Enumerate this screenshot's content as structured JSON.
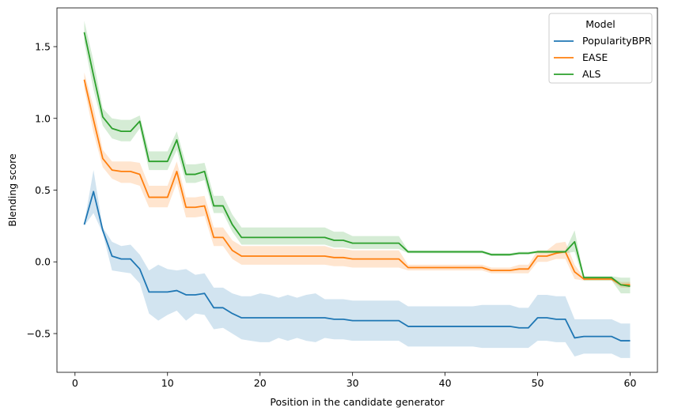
{
  "chart_data": {
    "type": "line",
    "xlabel": "Position in the candidate generator",
    "ylabel": "Blending score",
    "xlim": [
      -1.95,
      62.95
    ],
    "ylim": [
      -0.77,
      1.77
    ],
    "xticks": [
      0,
      10,
      20,
      30,
      40,
      50,
      60
    ],
    "yticks": [
      -0.5,
      0.0,
      0.5,
      1.0,
      1.5
    ],
    "xtick_labels": [
      "0",
      "10",
      "20",
      "30",
      "40",
      "50",
      "60"
    ],
    "ytick_labels": [
      "−0.5",
      "0.0",
      "0.5",
      "1.0",
      "1.5"
    ],
    "grid": false,
    "legend": {
      "title": "Model",
      "placement": "top-right"
    },
    "series": [
      {
        "name": "PopularityBPR",
        "color": "#1f77b4",
        "x": [
          1,
          2,
          3,
          4,
          5,
          6,
          7,
          8,
          9,
          10,
          11,
          12,
          13,
          14,
          15,
          16,
          17,
          18,
          19,
          20,
          21,
          22,
          23,
          24,
          25,
          26,
          27,
          28,
          29,
          30,
          31,
          32,
          33,
          34,
          35,
          36,
          37,
          38,
          39,
          40,
          41,
          42,
          43,
          44,
          45,
          46,
          47,
          48,
          49,
          50,
          51,
          52,
          53,
          54,
          55,
          56,
          57,
          58,
          59,
          60
        ],
        "values": [
          0.26,
          0.49,
          0.22,
          0.04,
          0.02,
          0.02,
          -0.05,
          -0.21,
          -0.21,
          -0.21,
          -0.2,
          -0.23,
          -0.23,
          -0.22,
          -0.32,
          -0.32,
          -0.36,
          -0.39,
          -0.39,
          -0.39,
          -0.39,
          -0.39,
          -0.39,
          -0.39,
          -0.39,
          -0.39,
          -0.39,
          -0.4,
          -0.4,
          -0.41,
          -0.41,
          -0.41,
          -0.41,
          -0.41,
          -0.41,
          -0.45,
          -0.45,
          -0.45,
          -0.45,
          -0.45,
          -0.45,
          -0.45,
          -0.45,
          -0.45,
          -0.45,
          -0.45,
          -0.45,
          -0.46,
          -0.46,
          -0.39,
          -0.39,
          -0.4,
          -0.4,
          -0.53,
          -0.52,
          -0.52,
          -0.52,
          -0.52,
          -0.55,
          -0.55
        ],
        "lower": [
          0.25,
          0.34,
          0.2,
          -0.06,
          -0.07,
          -0.08,
          -0.15,
          -0.36,
          -0.41,
          -0.37,
          -0.34,
          -0.41,
          -0.36,
          -0.37,
          -0.47,
          -0.46,
          -0.5,
          -0.54,
          -0.55,
          -0.56,
          -0.56,
          -0.53,
          -0.55,
          -0.53,
          -0.55,
          -0.56,
          -0.53,
          -0.54,
          -0.54,
          -0.55,
          -0.55,
          -0.55,
          -0.55,
          -0.55,
          -0.55,
          -0.59,
          -0.59,
          -0.59,
          -0.59,
          -0.59,
          -0.59,
          -0.59,
          -0.59,
          -0.6,
          -0.6,
          -0.6,
          -0.6,
          -0.6,
          -0.6,
          -0.55,
          -0.55,
          -0.56,
          -0.56,
          -0.66,
          -0.64,
          -0.64,
          -0.64,
          -0.64,
          -0.67,
          -0.67
        ],
        "upper": [
          0.27,
          0.64,
          0.24,
          0.14,
          0.11,
          0.12,
          0.05,
          -0.06,
          -0.02,
          -0.05,
          -0.06,
          -0.05,
          -0.09,
          -0.08,
          -0.18,
          -0.18,
          -0.22,
          -0.24,
          -0.24,
          -0.22,
          -0.23,
          -0.25,
          -0.23,
          -0.25,
          -0.23,
          -0.22,
          -0.26,
          -0.26,
          -0.26,
          -0.27,
          -0.27,
          -0.27,
          -0.27,
          -0.27,
          -0.27,
          -0.31,
          -0.31,
          -0.31,
          -0.31,
          -0.31,
          -0.31,
          -0.31,
          -0.31,
          -0.3,
          -0.3,
          -0.3,
          -0.3,
          -0.32,
          -0.32,
          -0.23,
          -0.23,
          -0.24,
          -0.24,
          -0.4,
          -0.4,
          -0.4,
          -0.4,
          -0.4,
          -0.43,
          -0.43
        ]
      },
      {
        "name": "EASE",
        "color": "#ff7f0e",
        "x": [
          1,
          2,
          3,
          4,
          5,
          6,
          7,
          8,
          9,
          10,
          11,
          12,
          13,
          14,
          15,
          16,
          17,
          18,
          19,
          20,
          21,
          22,
          23,
          24,
          25,
          26,
          27,
          28,
          29,
          30,
          31,
          32,
          33,
          34,
          35,
          36,
          37,
          38,
          39,
          40,
          41,
          42,
          43,
          44,
          45,
          46,
          47,
          48,
          49,
          50,
          51,
          52,
          53,
          54,
          55,
          56,
          57,
          58,
          59,
          60
        ],
        "values": [
          1.27,
          0.99,
          0.72,
          0.64,
          0.63,
          0.63,
          0.61,
          0.45,
          0.45,
          0.45,
          0.63,
          0.38,
          0.38,
          0.39,
          0.17,
          0.17,
          0.08,
          0.04,
          0.04,
          0.04,
          0.04,
          0.04,
          0.04,
          0.04,
          0.04,
          0.04,
          0.04,
          0.03,
          0.03,
          0.02,
          0.02,
          0.02,
          0.02,
          0.02,
          0.02,
          -0.04,
          -0.04,
          -0.04,
          -0.04,
          -0.04,
          -0.04,
          -0.04,
          -0.04,
          -0.04,
          -0.06,
          -0.06,
          -0.06,
          -0.05,
          -0.05,
          0.04,
          0.04,
          0.06,
          0.07,
          -0.07,
          -0.12,
          -0.12,
          -0.12,
          -0.12,
          -0.16,
          -0.16
        ],
        "lower": [
          1.21,
          0.9,
          0.66,
          0.58,
          0.55,
          0.55,
          0.53,
          0.38,
          0.38,
          0.38,
          0.55,
          0.31,
          0.31,
          0.32,
          0.11,
          0.11,
          0.02,
          -0.02,
          -0.02,
          -0.02,
          -0.02,
          -0.02,
          -0.02,
          -0.02,
          -0.02,
          -0.02,
          -0.02,
          -0.03,
          -0.03,
          -0.04,
          -0.04,
          -0.04,
          -0.04,
          -0.04,
          -0.04,
          -0.06,
          -0.06,
          -0.06,
          -0.06,
          -0.06,
          -0.06,
          -0.06,
          -0.06,
          -0.06,
          -0.08,
          -0.08,
          -0.08,
          -0.08,
          -0.08,
          0.0,
          0.0,
          0.02,
          0.02,
          -0.12,
          -0.13,
          -0.13,
          -0.13,
          -0.13,
          -0.18,
          -0.18
        ],
        "upper": [
          1.32,
          1.08,
          0.78,
          0.7,
          0.7,
          0.7,
          0.69,
          0.53,
          0.53,
          0.53,
          0.7,
          0.45,
          0.45,
          0.46,
          0.24,
          0.24,
          0.15,
          0.11,
          0.11,
          0.11,
          0.11,
          0.11,
          0.11,
          0.11,
          0.11,
          0.11,
          0.11,
          0.09,
          0.09,
          0.08,
          0.08,
          0.08,
          0.08,
          0.08,
          0.08,
          -0.02,
          -0.02,
          -0.02,
          -0.02,
          -0.02,
          -0.02,
          -0.02,
          -0.02,
          -0.02,
          -0.04,
          -0.04,
          -0.04,
          -0.02,
          -0.02,
          0.08,
          0.08,
          0.13,
          0.14,
          -0.02,
          -0.11,
          -0.11,
          -0.11,
          -0.11,
          -0.14,
          -0.14
        ]
      },
      {
        "name": "ALS",
        "color": "#2ca02c",
        "x": [
          1,
          2,
          3,
          4,
          5,
          6,
          7,
          8,
          9,
          10,
          11,
          12,
          13,
          14,
          15,
          16,
          17,
          18,
          19,
          20,
          21,
          22,
          23,
          24,
          25,
          26,
          27,
          28,
          29,
          30,
          31,
          32,
          33,
          34,
          35,
          36,
          37,
          38,
          39,
          40,
          41,
          42,
          43,
          44,
          45,
          46,
          47,
          48,
          49,
          50,
          51,
          52,
          53,
          54,
          55,
          56,
          57,
          58,
          59,
          60
        ],
        "values": [
          1.6,
          1.3,
          1.01,
          0.93,
          0.91,
          0.91,
          0.98,
          0.7,
          0.7,
          0.7,
          0.85,
          0.61,
          0.61,
          0.63,
          0.39,
          0.39,
          0.26,
          0.17,
          0.17,
          0.17,
          0.17,
          0.17,
          0.17,
          0.17,
          0.17,
          0.17,
          0.17,
          0.15,
          0.15,
          0.13,
          0.13,
          0.13,
          0.13,
          0.13,
          0.13,
          0.07,
          0.07,
          0.07,
          0.07,
          0.07,
          0.07,
          0.07,
          0.07,
          0.07,
          0.05,
          0.05,
          0.05,
          0.06,
          0.06,
          0.07,
          0.07,
          0.07,
          0.07,
          0.14,
          -0.11,
          -0.11,
          -0.11,
          -0.11,
          -0.16,
          -0.17
        ],
        "lower": [
          1.53,
          1.2,
          0.95,
          0.86,
          0.84,
          0.84,
          0.93,
          0.64,
          0.64,
          0.64,
          0.78,
          0.55,
          0.55,
          0.57,
          0.34,
          0.34,
          0.21,
          0.12,
          0.12,
          0.12,
          0.12,
          0.12,
          0.12,
          0.12,
          0.12,
          0.12,
          0.12,
          0.1,
          0.1,
          0.09,
          0.09,
          0.09,
          0.09,
          0.09,
          0.09,
          0.06,
          0.06,
          0.06,
          0.06,
          0.06,
          0.06,
          0.06,
          0.06,
          0.06,
          0.04,
          0.04,
          0.04,
          0.05,
          0.05,
          0.06,
          0.06,
          0.06,
          0.06,
          0.07,
          -0.13,
          -0.13,
          -0.13,
          -0.13,
          -0.22,
          -0.22
        ],
        "upper": [
          1.68,
          1.4,
          1.07,
          1.0,
          0.99,
          0.99,
          1.02,
          0.77,
          0.77,
          0.77,
          0.91,
          0.68,
          0.68,
          0.69,
          0.46,
          0.46,
          0.33,
          0.24,
          0.24,
          0.24,
          0.24,
          0.24,
          0.24,
          0.24,
          0.24,
          0.24,
          0.24,
          0.21,
          0.21,
          0.18,
          0.18,
          0.18,
          0.18,
          0.18,
          0.18,
          0.08,
          0.08,
          0.08,
          0.08,
          0.08,
          0.08,
          0.08,
          0.08,
          0.08,
          0.06,
          0.06,
          0.06,
          0.07,
          0.07,
          0.08,
          0.08,
          0.08,
          0.08,
          0.22,
          -0.1,
          -0.1,
          -0.1,
          -0.1,
          -0.11,
          -0.11
        ]
      }
    ]
  }
}
